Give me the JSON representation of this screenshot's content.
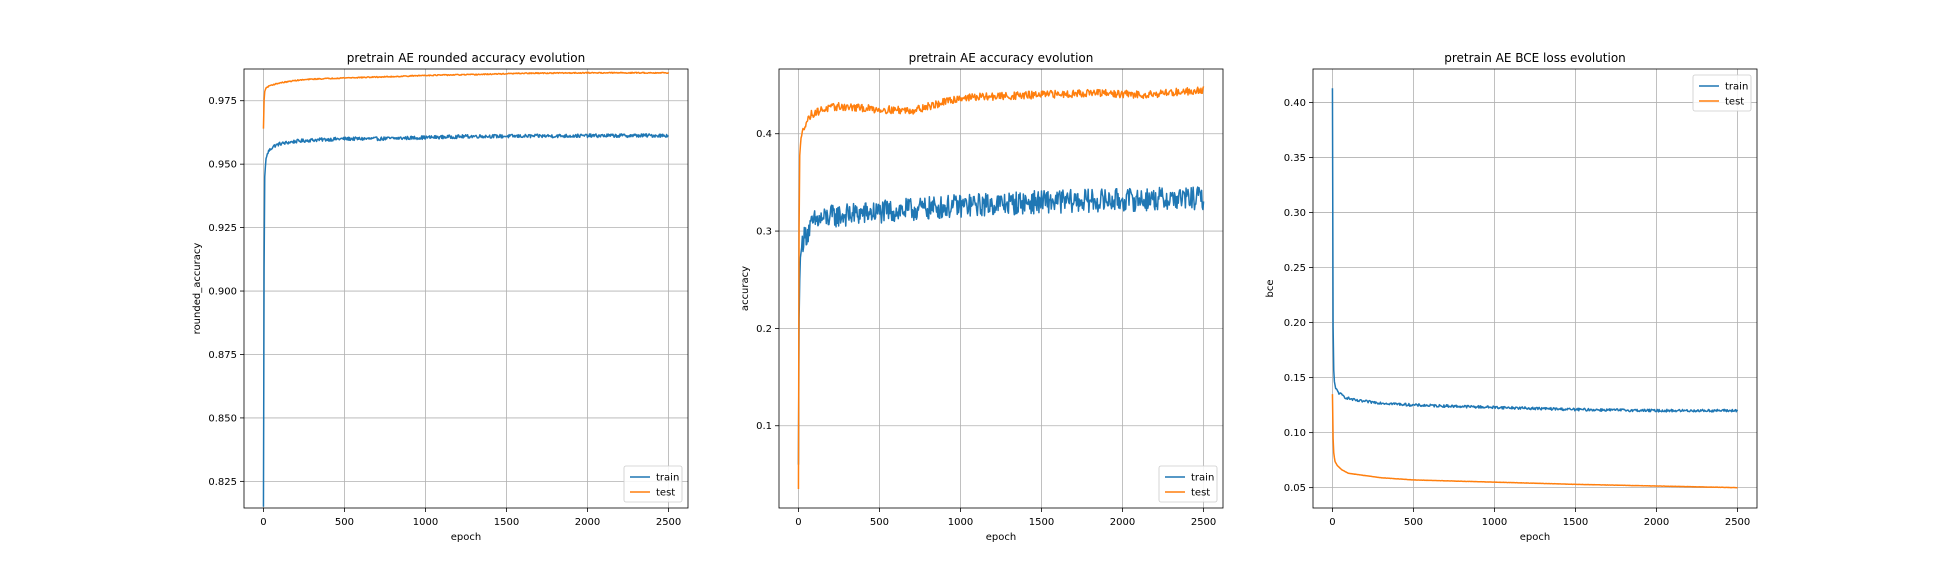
{
  "colors": {
    "train": "#1f77b4",
    "test": "#ff7f0e"
  },
  "chart_data": [
    {
      "type": "line",
      "title": "pretrain AE rounded accuracy evolution",
      "xlabel": "epoch",
      "ylabel": "rounded_accuracy",
      "xlim": [
        -120,
        2620
      ],
      "ylim": [
        0.8145,
        0.9875
      ],
      "xticks": [
        0,
        500,
        1000,
        1500,
        2000,
        2500
      ],
      "xtick_labels": [
        "0",
        "500",
        "1000",
        "1500",
        "2000",
        "2500"
      ],
      "yticks": [
        0.825,
        0.85,
        0.875,
        0.9,
        0.925,
        0.95,
        0.975
      ],
      "ytick_labels": [
        "0.825",
        "0.850",
        "0.875",
        "0.900",
        "0.925",
        "0.950",
        "0.975"
      ],
      "grid": true,
      "legend": "lower right",
      "series": [
        {
          "name": "train",
          "x": [
            0,
            3,
            8,
            15,
            30,
            60,
            100,
            200,
            300,
            500,
            700,
            1000,
            1300,
            1500,
            2000,
            2500
          ],
          "values": [
            0.815,
            0.9,
            0.945,
            0.952,
            0.955,
            0.957,
            0.958,
            0.959,
            0.9595,
            0.96,
            0.96,
            0.9605,
            0.961,
            0.961,
            0.9612,
            0.9613
          ],
          "noise": 0.0007
        },
        {
          "name": "test",
          "x": [
            0,
            5,
            15,
            40,
            100,
            200,
            300,
            500,
            800,
            1000,
            1300,
            1600,
            2000,
            2500
          ],
          "values": [
            0.964,
            0.978,
            0.98,
            0.981,
            0.982,
            0.983,
            0.9835,
            0.984,
            0.9845,
            0.985,
            0.9853,
            0.9858,
            0.986,
            0.986
          ],
          "noise": 0.0002
        }
      ]
    },
    {
      "type": "line",
      "title": "pretrain AE accuracy evolution",
      "xlabel": "epoch",
      "ylabel": "accuracy",
      "xlim": [
        -120,
        2620
      ],
      "ylim": [
        0.0155,
        0.4665
      ],
      "xticks": [
        0,
        500,
        1000,
        1500,
        2000,
        2500
      ],
      "xtick_labels": [
        "0",
        "500",
        "1000",
        "1500",
        "2000",
        "2500"
      ],
      "yticks": [
        0.1,
        0.2,
        0.3,
        0.4
      ],
      "ytick_labels": [
        "0.1",
        "0.2",
        "0.3",
        "0.4"
      ],
      "grid": true,
      "legend": "lower right",
      "series": [
        {
          "name": "train",
          "x": [
            0,
            3,
            10,
            25,
            60,
            100,
            200,
            400,
            700,
            1000,
            1500,
            2000,
            2500
          ],
          "values": [
            0.06,
            0.2,
            0.27,
            0.29,
            0.3,
            0.31,
            0.315,
            0.318,
            0.322,
            0.326,
            0.33,
            0.332,
            0.334
          ],
          "noise": 0.012
        },
        {
          "name": "test",
          "x": [
            0,
            5,
            15,
            40,
            80,
            150,
            250,
            500,
            700,
            850,
            1000,
            1500,
            1800,
            2100,
            2350,
            2500
          ],
          "values": [
            0.035,
            0.37,
            0.395,
            0.41,
            0.42,
            0.425,
            0.428,
            0.425,
            0.424,
            0.43,
            0.437,
            0.44,
            0.442,
            0.44,
            0.443,
            0.445
          ],
          "noise": 0.004
        }
      ]
    },
    {
      "type": "line",
      "title": "pretrain AE BCE loss evolution",
      "xlabel": "epoch",
      "ylabel": "bce",
      "xlim": [
        -120,
        2620
      ],
      "ylim": [
        0.0315,
        0.4305
      ],
      "xticks": [
        0,
        500,
        1000,
        1500,
        2000,
        2500
      ],
      "xtick_labels": [
        "0",
        "500",
        "1000",
        "1500",
        "2000",
        "2500"
      ],
      "yticks": [
        0.05,
        0.1,
        0.15,
        0.2,
        0.25,
        0.3,
        0.35,
        0.4
      ],
      "ytick_labels": [
        "0.05",
        "0.10",
        "0.15",
        "0.20",
        "0.25",
        "0.30",
        "0.35",
        "0.40"
      ],
      "grid": true,
      "legend": "upper right",
      "series": [
        {
          "name": "train",
          "x": [
            0,
            2,
            5,
            10,
            20,
            40,
            80,
            150,
            300,
            500,
            1000,
            1500,
            2000,
            2500
          ],
          "values": [
            0.413,
            0.25,
            0.17,
            0.148,
            0.14,
            0.136,
            0.132,
            0.129,
            0.127,
            0.125,
            0.123,
            0.121,
            0.12,
            0.12
          ],
          "noise": 0.0012
        },
        {
          "name": "test",
          "x": [
            0,
            5,
            15,
            30,
            60,
            100,
            200,
            300,
            500,
            750,
            1000,
            1500,
            2000,
            2500
          ],
          "values": [
            0.135,
            0.085,
            0.074,
            0.07,
            0.066,
            0.063,
            0.061,
            0.059,
            0.057,
            0.056,
            0.055,
            0.053,
            0.0515,
            0.05
          ],
          "noise": 0.0001
        }
      ]
    }
  ]
}
